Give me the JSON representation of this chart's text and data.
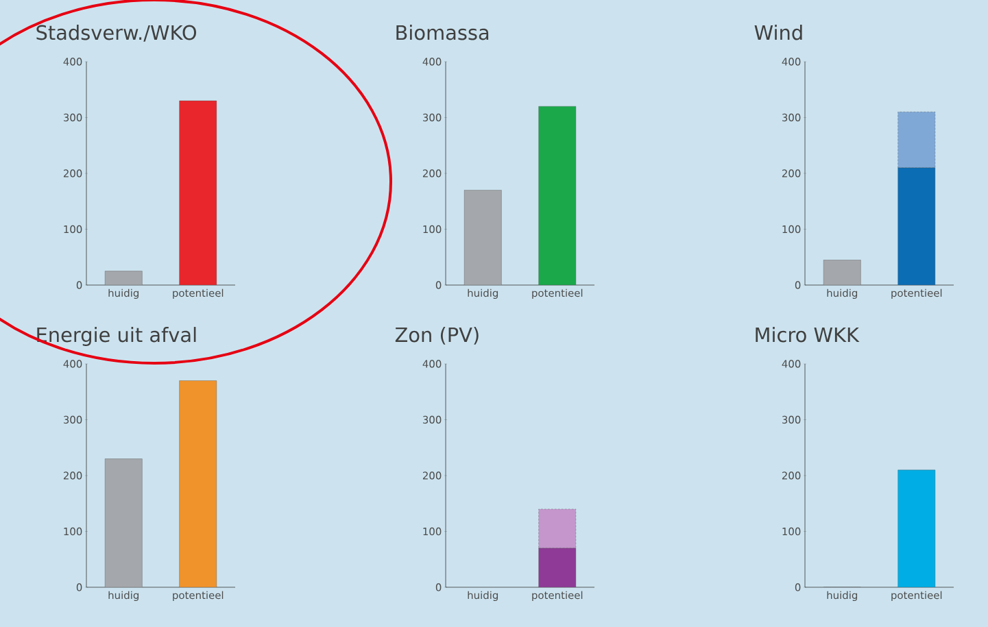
{
  "chart_data": [
    {
      "type": "bar",
      "title": "Stadsverw./WKO",
      "categories": [
        "huidig",
        "potentieel"
      ],
      "ylim": [
        0,
        400
      ],
      "yticks": [
        0,
        100,
        200,
        300,
        400
      ],
      "series": [
        {
          "colors": [
            "#a4a7ab",
            "#e8262b"
          ],
          "values": [
            25,
            330
          ]
        }
      ]
    },
    {
      "type": "bar",
      "title": "Biomassa",
      "categories": [
        "huidig",
        "potentieel"
      ],
      "ylim": [
        0,
        400
      ],
      "yticks": [
        0,
        100,
        200,
        300,
        400
      ],
      "series": [
        {
          "colors": [
            "#a4a7ab",
            "#1aa84b"
          ],
          "values": [
            170,
            320
          ]
        }
      ]
    },
    {
      "type": "bar",
      "title": "Wind",
      "categories": [
        "huidig",
        "potentieel"
      ],
      "ylim": [
        0,
        400
      ],
      "yticks": [
        0,
        100,
        200,
        300,
        400
      ],
      "stacked": true,
      "series": [
        {
          "colors": [
            "#a4a7ab",
            "#0b6db4"
          ],
          "values": [
            45,
            210
          ]
        },
        {
          "colors": [
            null,
            "#7fa8d6"
          ],
          "values": [
            null,
            100
          ],
          "line_style": "dashed"
        }
      ]
    },
    {
      "type": "bar",
      "title": "Energie uit afval",
      "categories": [
        "huidig",
        "potentieel"
      ],
      "ylim": [
        0,
        400
      ],
      "yticks": [
        0,
        100,
        200,
        300,
        400
      ],
      "series": [
        {
          "colors": [
            "#a4a7ab",
            "#f0932b"
          ],
          "values": [
            230,
            370
          ]
        }
      ]
    },
    {
      "type": "bar",
      "title": "Zon (PV)",
      "categories": [
        "huidig",
        "potentieel"
      ],
      "ylim": [
        0,
        400
      ],
      "yticks": [
        0,
        100,
        200,
        300,
        400
      ],
      "stacked": true,
      "series": [
        {
          "colors": [
            "#a4a7ab",
            "#8e3a96"
          ],
          "values": [
            0,
            70
          ]
        },
        {
          "colors": [
            null,
            "#c496cc"
          ],
          "values": [
            null,
            70
          ],
          "line_style": "dashed"
        }
      ]
    },
    {
      "type": "bar",
      "title": "Micro WKK",
      "categories": [
        "huidig",
        "potentieel"
      ],
      "ylim": [
        0,
        400
      ],
      "yticks": [
        0,
        100,
        200,
        300,
        400
      ],
      "series": [
        {
          "colors": [
            "#a4a7ab",
            "#00aee5"
          ],
          "values": [
            0,
            210
          ]
        }
      ]
    }
  ]
}
